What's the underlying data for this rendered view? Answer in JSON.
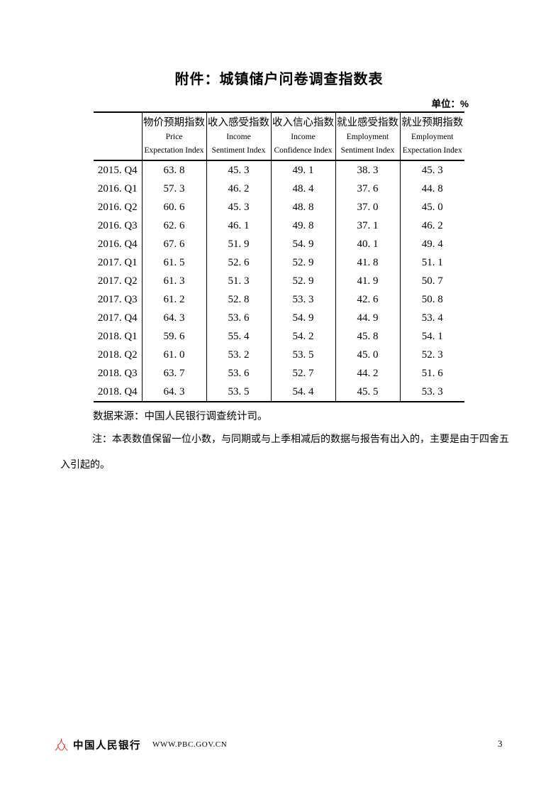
{
  "page": {
    "title": "附件：城镇储户问卷调查指数表",
    "unit_label": "单位：%"
  },
  "table": {
    "columns": [
      {
        "zh": "物价预期指数",
        "en1": "Price",
        "en2": "Expectation Index"
      },
      {
        "zh": "收入感受指数",
        "en1": "Income",
        "en2": "Sentiment Index"
      },
      {
        "zh": "收入信心指数",
        "en1": "Income",
        "en2": "Confidence Index"
      },
      {
        "zh": "就业感受指数",
        "en1": "Employment",
        "en2": "Sentiment Index"
      },
      {
        "zh": "就业预期指数",
        "en1": "Employment",
        "en2": "Expectation Index"
      }
    ],
    "rows": [
      {
        "period": "2015.Q4",
        "values": [
          "63.8",
          "45.3",
          "49.1",
          "38.3",
          "45.3"
        ]
      },
      {
        "period": "2016.Q1",
        "values": [
          "57.3",
          "46.2",
          "48.4",
          "37.6",
          "44.8"
        ]
      },
      {
        "period": "2016.Q2",
        "values": [
          "60.6",
          "45.3",
          "48.8",
          "37.0",
          "45.0"
        ]
      },
      {
        "period": "2016.Q3",
        "values": [
          "62.6",
          "46.1",
          "49.8",
          "37.1",
          "46.2"
        ]
      },
      {
        "period": "2016.Q4",
        "values": [
          "67.6",
          "51.9",
          "54.9",
          "40.1",
          "49.4"
        ]
      },
      {
        "period": "2017.Q1",
        "values": [
          "61.5",
          "52.6",
          "52.9",
          "41.8",
          "51.1"
        ]
      },
      {
        "period": "2017.Q2",
        "values": [
          "61.3",
          "51.3",
          "52.9",
          "41.9",
          "50.7"
        ]
      },
      {
        "period": "2017.Q3",
        "values": [
          "61.2",
          "52.8",
          "53.3",
          "42.6",
          "50.8"
        ]
      },
      {
        "period": "2017.Q4",
        "values": [
          "64.3",
          "53.6",
          "54.9",
          "44.9",
          "53.4"
        ]
      },
      {
        "period": "2018.Q1",
        "values": [
          "59.6",
          "55.4",
          "54.2",
          "45.8",
          "54.1"
        ]
      },
      {
        "period": "2018.Q2",
        "values": [
          "61.0",
          "53.2",
          "53.5",
          "45.0",
          "52.3"
        ]
      },
      {
        "period": "2018.Q3",
        "values": [
          "63.7",
          "53.6",
          "52.7",
          "44.2",
          "51.6"
        ]
      },
      {
        "period": "2018.Q4",
        "values": [
          "64.3",
          "53.5",
          "54.4",
          "45.5",
          "53.3"
        ]
      }
    ]
  },
  "notes": {
    "source": "数据来源：中国人民银行调查统计司。",
    "note": "注：本表数值保留一位小数，与同期或与上季相减后的数据与报告有出入的，主要是由于四舍五入引起的。"
  },
  "footer": {
    "bank_name": "中国人民银行",
    "website": "WWW.PBC.GOV.CN",
    "page_number": "3"
  },
  "colors": {
    "logo_red": "#d01f1f",
    "text": "#000000"
  }
}
